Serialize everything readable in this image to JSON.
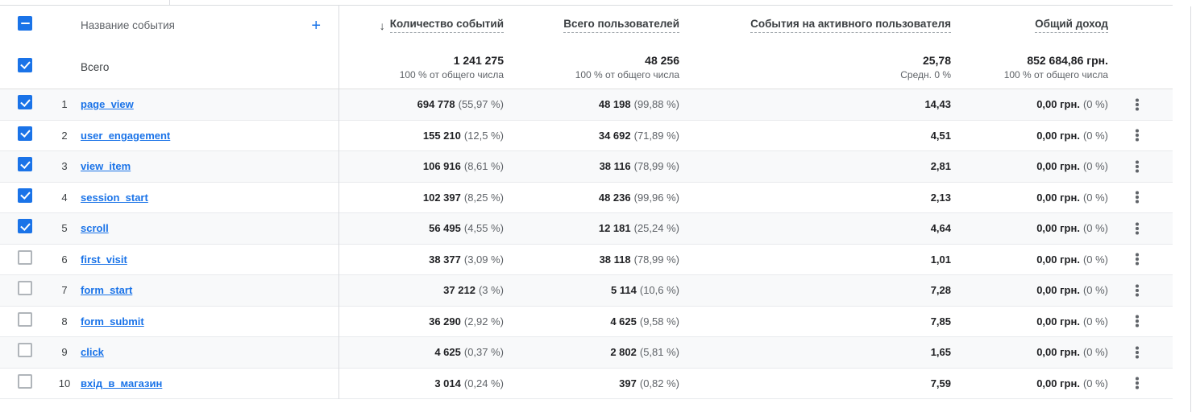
{
  "colors": {
    "accent_blue": "#1a73e8",
    "text_dark": "#202124",
    "text_gray": "#5f6368",
    "row_stripe": "#f8f9fa",
    "divider": "#dadce0"
  },
  "icons": {
    "sort_desc_arrow": "↓",
    "add_column": "+",
    "row_menu": "kebab-vertical-dots",
    "header_checkbox_state": "indeterminate"
  },
  "table": {
    "name_column_header": "Название события",
    "metric_columns": [
      {
        "label": "Количество событий",
        "sorted_desc": true
      },
      {
        "label": "Всего пользователей",
        "sorted_desc": false
      },
      {
        "label": "События на активного пользователя",
        "sorted_desc": false
      },
      {
        "label": "Общий доход",
        "sorted_desc": false
      }
    ],
    "totals": {
      "label": "Всего",
      "event_count": "1 241 275",
      "event_count_sub": "100 % от общего числа",
      "users": "48 256",
      "users_sub": "100 % от общего числа",
      "per_user": "25,78",
      "per_user_sub": "Средн. 0 %",
      "revenue": "852 684,86 грн.",
      "revenue_sub": "100 % от общего числа"
    },
    "rows": [
      {
        "index": "1",
        "checked": true,
        "name": "page_view",
        "event_count": "694 778",
        "event_count_pct": "(55,97 %)",
        "users": "48 198",
        "users_pct": "(99,88 %)",
        "per_user": "14,43",
        "revenue": "0,00 грн.",
        "revenue_pct": "(0 %)"
      },
      {
        "index": "2",
        "checked": true,
        "name": "user_engagement",
        "event_count": "155 210",
        "event_count_pct": "(12,5 %)",
        "users": "34 692",
        "users_pct": "(71,89 %)",
        "per_user": "4,51",
        "revenue": "0,00 грн.",
        "revenue_pct": "(0 %)"
      },
      {
        "index": "3",
        "checked": true,
        "name": "view_item",
        "event_count": "106 916",
        "event_count_pct": "(8,61 %)",
        "users": "38 116",
        "users_pct": "(78,99 %)",
        "per_user": "2,81",
        "revenue": "0,00 грн.",
        "revenue_pct": "(0 %)"
      },
      {
        "index": "4",
        "checked": true,
        "name": "session_start",
        "event_count": "102 397",
        "event_count_pct": "(8,25 %)",
        "users": "48 236",
        "users_pct": "(99,96 %)",
        "per_user": "2,13",
        "revenue": "0,00 грн.",
        "revenue_pct": "(0 %)"
      },
      {
        "index": "5",
        "checked": true,
        "name": "scroll",
        "event_count": "56 495",
        "event_count_pct": "(4,55 %)",
        "users": "12 181",
        "users_pct": "(25,24 %)",
        "per_user": "4,64",
        "revenue": "0,00 грн.",
        "revenue_pct": "(0 %)"
      },
      {
        "index": "6",
        "checked": false,
        "name": "first_visit",
        "event_count": "38 377",
        "event_count_pct": "(3,09 %)",
        "users": "38 118",
        "users_pct": "(78,99 %)",
        "per_user": "1,01",
        "revenue": "0,00 грн.",
        "revenue_pct": "(0 %)"
      },
      {
        "index": "7",
        "checked": false,
        "name": "form_start",
        "event_count": "37 212",
        "event_count_pct": "(3 %)",
        "users": "5 114",
        "users_pct": "(10,6 %)",
        "per_user": "7,28",
        "revenue": "0,00 грн.",
        "revenue_pct": "(0 %)"
      },
      {
        "index": "8",
        "checked": false,
        "name": "form_submit",
        "event_count": "36 290",
        "event_count_pct": "(2,92 %)",
        "users": "4 625",
        "users_pct": "(9,58 %)",
        "per_user": "7,85",
        "revenue": "0,00 грн.",
        "revenue_pct": "(0 %)"
      },
      {
        "index": "9",
        "checked": false,
        "name": "click",
        "event_count": "4 625",
        "event_count_pct": "(0,37 %)",
        "users": "2 802",
        "users_pct": "(5,81 %)",
        "per_user": "1,65",
        "revenue": "0,00 грн.",
        "revenue_pct": "(0 %)"
      },
      {
        "index": "10",
        "checked": false,
        "name": "вхід_в_магазин",
        "event_count": "3 014",
        "event_count_pct": "(0,24 %)",
        "users": "397",
        "users_pct": "(0,82 %)",
        "per_user": "7,59",
        "revenue": "0,00 грн.",
        "revenue_pct": "(0 %)"
      }
    ]
  }
}
